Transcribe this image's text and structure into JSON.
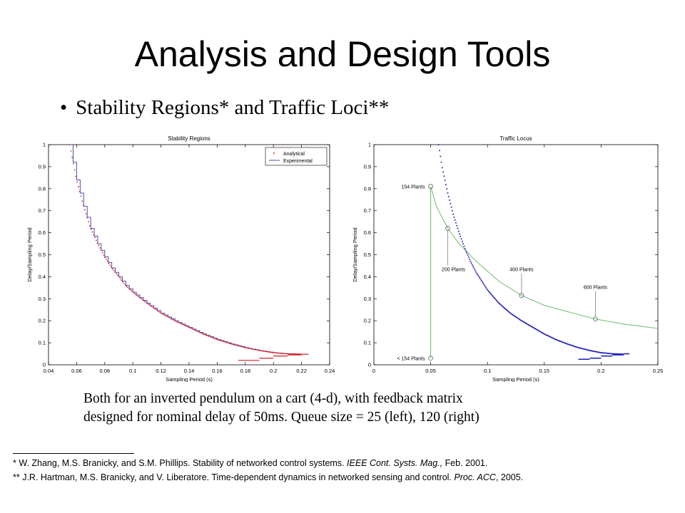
{
  "slide": {
    "title": "Analysis and Design Tools",
    "bullet_symbol": "•",
    "bullet": "Stability Regions* and Traffic Loci**",
    "caption_lines": [
      "Both for an inverted pendulum on a cart (4-d), with feedback matrix",
      "designed for nominal delay of 50ms. Queue size = 25 (left), 120 (right)"
    ],
    "footnotes": [
      {
        "marker": "* ",
        "authors": "W. Zhang, M.S. Branicky, and S.M. Phillips. Stability of networked control systems. ",
        "venue": "IEEE Cont. Systs. Mag.,",
        "tail": " Feb. 2001."
      },
      {
        "marker": "** ",
        "authors": "J.R. Hartman, M.S. Branicky, and V. Liberatore. Time-dependent dynamics in networked sensing and control. ",
        "venue": "Proc. ACC",
        "tail": ", 2005."
      }
    ]
  },
  "chart_data": [
    {
      "type": "scatter",
      "title": "Stability Regions",
      "xlabel": "Sampling Period (s)",
      "ylabel": "Delay/Sampling Period",
      "xlim": [
        0.04,
        0.24
      ],
      "ylim": [
        0,
        1
      ],
      "xticks": [
        0.04,
        0.06,
        0.08,
        0.1,
        0.12,
        0.14,
        0.16,
        0.18,
        0.2,
        0.22,
        0.24
      ],
      "xtick_labels": [
        "0.04",
        "0.06",
        "0.08",
        "0.1",
        "0.12",
        "0.14",
        "0.16",
        "0.18",
        "0.2",
        "0.22",
        "0.24"
      ],
      "yticks": [
        0,
        0.1,
        0.2,
        0.3,
        0.4,
        0.5,
        0.6,
        0.7,
        0.8,
        0.9,
        1
      ],
      "ytick_labels": [
        "0",
        "0.1",
        "0.2",
        "0.3",
        "0.4",
        "0.5",
        "0.6",
        "0.7",
        "0.8",
        "0.9",
        "1"
      ],
      "legend_position": "top-right",
      "grid": false,
      "series": [
        {
          "name": "Analytical",
          "style": "dots",
          "color": "#d0202a",
          "x": [
            0.055,
            0.06,
            0.065,
            0.07,
            0.075,
            0.08,
            0.085,
            0.09,
            0.095,
            0.1,
            0.11,
            0.12,
            0.13,
            0.14,
            0.15,
            0.16,
            0.17,
            0.18,
            0.19,
            0.2,
            0.21,
            0.22
          ],
          "y": [
            1.0,
            0.84,
            0.72,
            0.62,
            0.55,
            0.49,
            0.44,
            0.4,
            0.36,
            0.33,
            0.28,
            0.235,
            0.2,
            0.17,
            0.14,
            0.115,
            0.095,
            0.078,
            0.065,
            0.055,
            0.05,
            0.048
          ]
        },
        {
          "name": "Experimental",
          "style": "steps",
          "color": "#3a3aa8",
          "x": [
            0.055,
            0.06,
            0.065,
            0.07,
            0.075,
            0.08,
            0.085,
            0.09,
            0.095,
            0.1,
            0.11,
            0.12,
            0.13,
            0.14,
            0.15,
            0.16,
            0.17,
            0.18,
            0.19,
            0.2,
            0.21,
            0.22
          ],
          "y": [
            1.0,
            0.84,
            0.72,
            0.62,
            0.55,
            0.49,
            0.44,
            0.4,
            0.36,
            0.33,
            0.28,
            0.235,
            0.2,
            0.17,
            0.14,
            0.115,
            0.095,
            0.078,
            0.065,
            0.055,
            0.05,
            0.048
          ]
        }
      ],
      "lower_branch": {
        "x": [
          0.175,
          0.19,
          0.2,
          0.21,
          0.22
        ],
        "y": [
          0.02,
          0.03,
          0.04,
          0.045,
          0.048
        ]
      }
    },
    {
      "type": "line",
      "title": "Traffic Locus",
      "xlabel": "Sampling Period (s)",
      "ylabel": "Delay/Sampling Period",
      "xlim": [
        0,
        0.25
      ],
      "ylim": [
        0,
        1
      ],
      "xticks": [
        0,
        0.05,
        0.1,
        0.15,
        0.2,
        0.25
      ],
      "xtick_labels": [
        "0",
        "0.05",
        "0.1",
        "0.15",
        "0.2",
        "0.25"
      ],
      "yticks": [
        0,
        0.1,
        0.2,
        0.3,
        0.4,
        0.5,
        0.6,
        0.7,
        0.8,
        0.9,
        1
      ],
      "ytick_labels": [
        "0",
        "0.1",
        "0.2",
        "0.3",
        "0.4",
        "0.5",
        "0.6",
        "0.7",
        "0.8",
        "0.9",
        "1"
      ],
      "grid": false,
      "series": [
        {
          "style": "dots",
          "color": "#2424b8",
          "x": [
            0.057,
            0.06,
            0.065,
            0.07,
            0.075,
            0.08,
            0.085,
            0.09,
            0.095,
            0.1,
            0.11,
            0.12,
            0.13,
            0.14,
            0.15,
            0.16,
            0.17,
            0.18,
            0.19,
            0.2,
            0.21,
            0.22
          ],
          "y": [
            1.0,
            0.9,
            0.78,
            0.68,
            0.6,
            0.53,
            0.47,
            0.42,
            0.38,
            0.34,
            0.28,
            0.235,
            0.2,
            0.17,
            0.14,
            0.115,
            0.095,
            0.078,
            0.065,
            0.055,
            0.05,
            0.048
          ]
        },
        {
          "style": "line",
          "color": "#7cc07c",
          "x": [
            0.05,
            0.05,
            0.055,
            0.065,
            0.075,
            0.09,
            0.11,
            0.13,
            0.15,
            0.175,
            0.195,
            0.22,
            0.25
          ],
          "y": [
            0.03,
            0.81,
            0.72,
            0.62,
            0.55,
            0.47,
            0.38,
            0.315,
            0.27,
            0.235,
            0.208,
            0.185,
            0.165
          ]
        }
      ],
      "lower_branch": {
        "x": [
          0.18,
          0.19,
          0.2,
          0.21,
          0.22
        ],
        "y": [
          0.025,
          0.03,
          0.04,
          0.045,
          0.05
        ]
      },
      "annotations": [
        {
          "label": "154 Plants",
          "x": 0.05,
          "y": 0.81
        },
        {
          "label": "200 Plants",
          "x": 0.065,
          "y": 0.62
        },
        {
          "label": "400 Plants",
          "x": 0.13,
          "y": 0.315
        },
        {
          "label": "600 Plants",
          "x": 0.195,
          "y": 0.208
        },
        {
          "label": "< 154 Plants",
          "x": 0.05,
          "y": 0.03
        }
      ]
    }
  ]
}
